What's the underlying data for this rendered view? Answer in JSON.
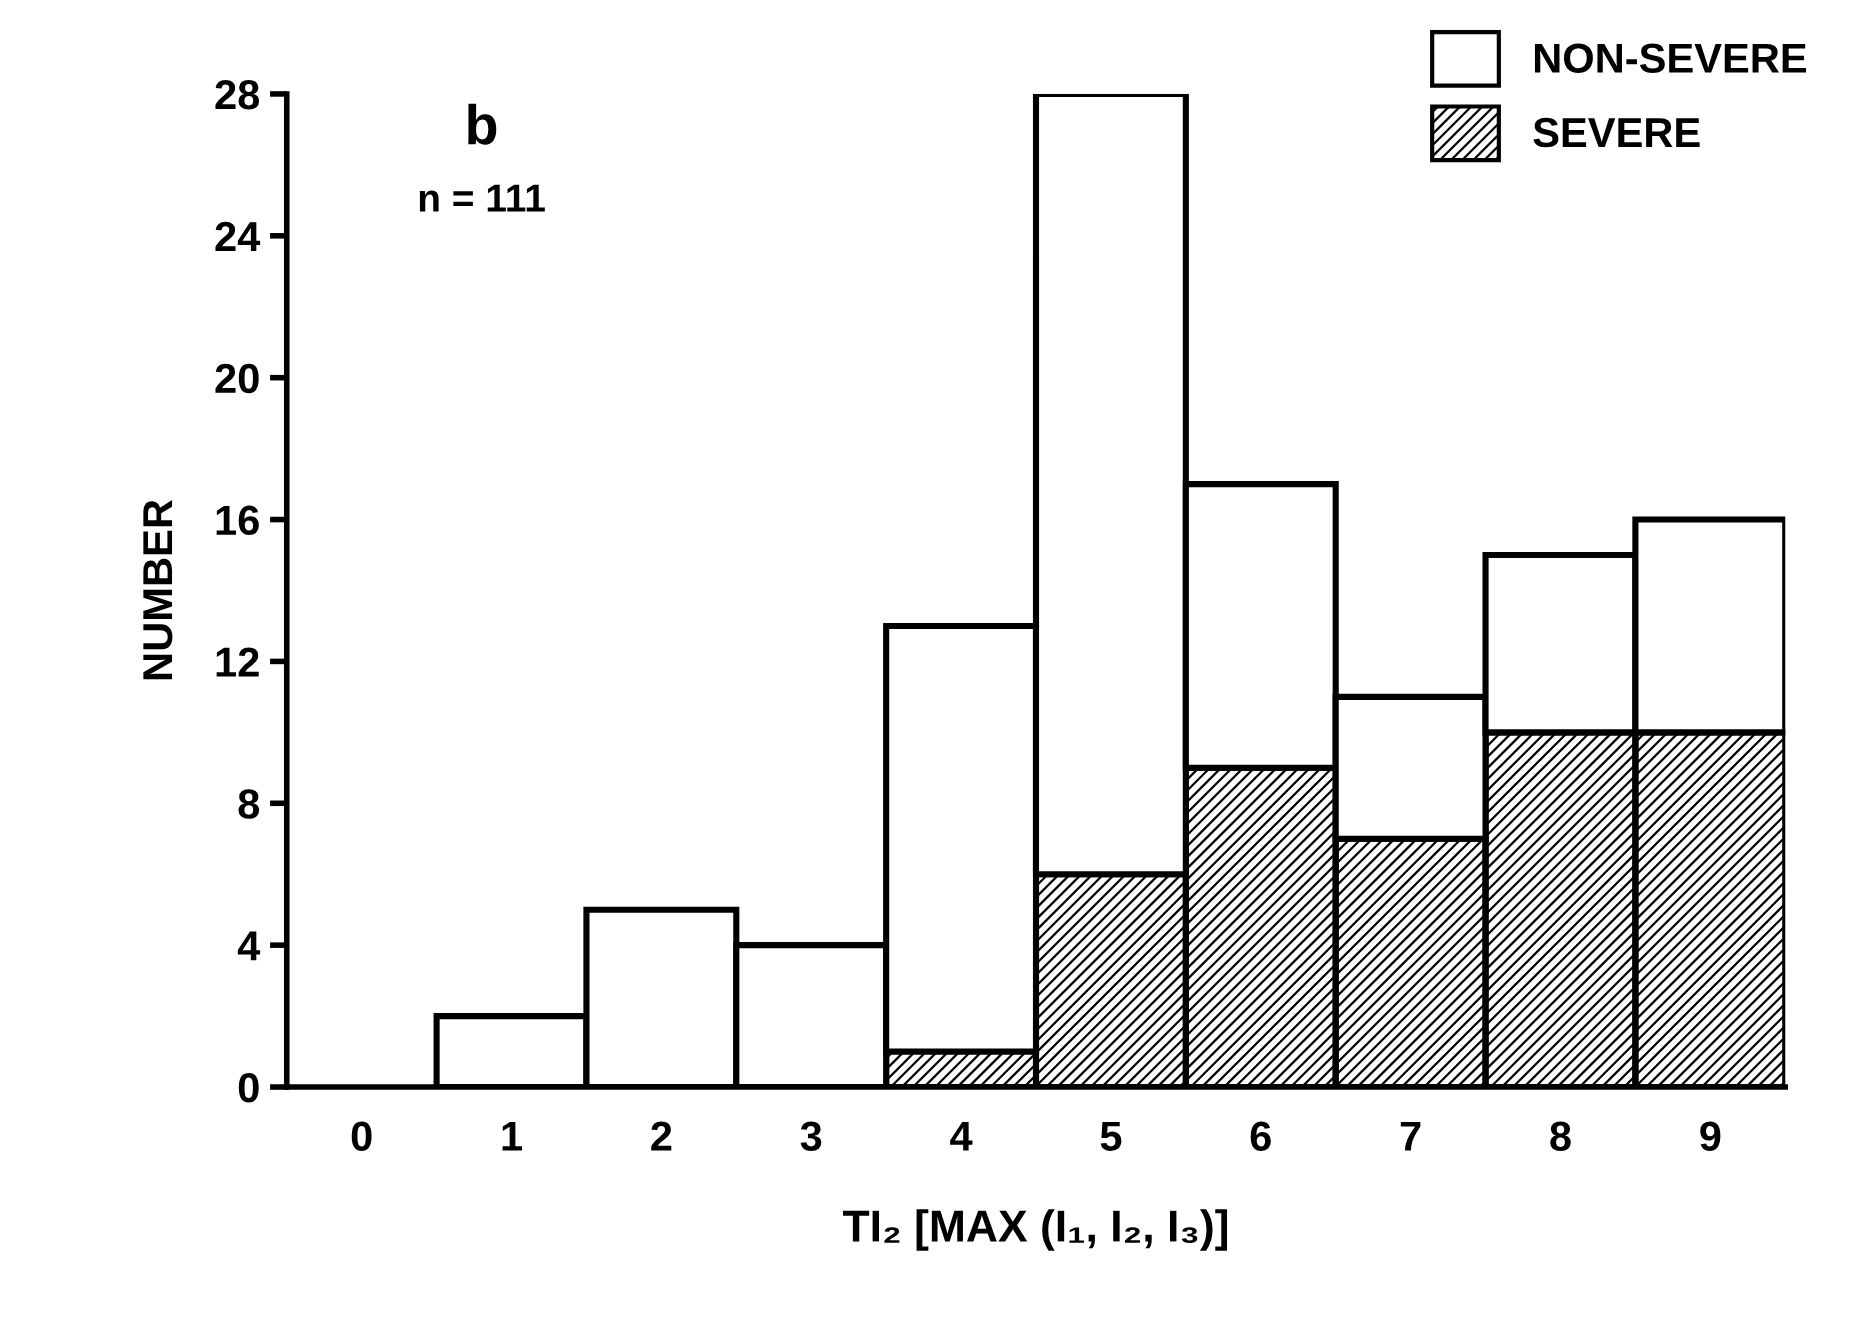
{
  "chart_data": {
    "type": "bar",
    "title": "b",
    "xlabel": "TI₂ [MAX (I₁, I₂, I₃)]",
    "ylabel": "NUMBER",
    "annotations": [
      "n = 111"
    ],
    "categories": [
      "0",
      "1",
      "2",
      "3",
      "4",
      "5",
      "6",
      "7",
      "8",
      "9"
    ],
    "stacked": true,
    "series": [
      {
        "name": "SEVERE",
        "color": "#000000",
        "values": [
          0,
          0,
          0,
          0,
          1,
          6,
          9,
          7,
          10,
          10
        ]
      },
      {
        "name": "NON-SEVERE",
        "color": "#ffffff",
        "values": [
          0,
          2,
          5,
          4,
          12,
          22,
          8,
          4,
          5,
          6
        ]
      }
    ],
    "ylim": [
      0,
      28
    ],
    "yticks": [
      0,
      4,
      8,
      12,
      16,
      20,
      24,
      28
    ],
    "grid": false,
    "legend": "top right"
  }
}
